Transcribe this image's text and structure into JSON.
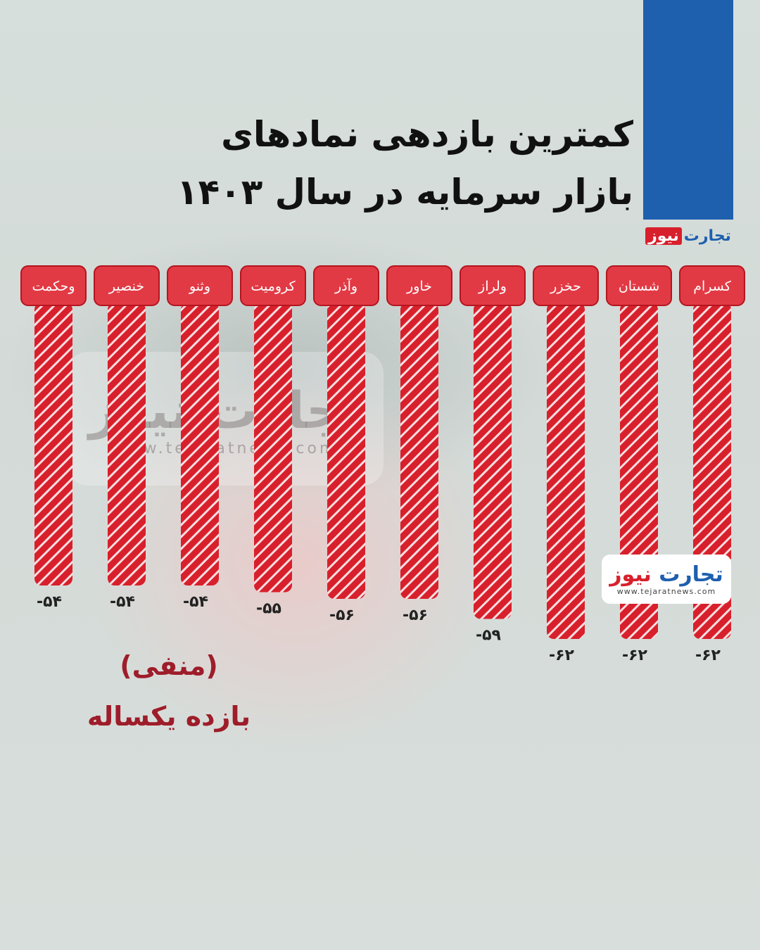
{
  "title_lines": [
    "کمترین بازدهی نمادهای",
    "بازار سرمایه در سال ۱۴۰۳"
  ],
  "brand": {
    "name_part1": "تجارت",
    "name_part2": "نیوز",
    "url": "www.tejaratnews.com"
  },
  "caption": {
    "line1": "(منفی)",
    "line2": "بازده یکساله"
  },
  "colors": {
    "bar": "#d8202c",
    "bar_stripe": "#ffffff",
    "label_fill": "#e23a45",
    "label_text": "#ffffff",
    "value_text": "#222222",
    "accent_blue": "#1e5fae"
  },
  "chart_data": {
    "type": "bar",
    "orientation": "vertical-downward",
    "categories": [
      "کسرام",
      "شستان",
      "حخزر",
      "ولراز",
      "خاور",
      "وآذر",
      "کرومیت",
      "وثنو",
      "خنصیر",
      "وحکمت"
    ],
    "values": [
      -62,
      -62,
      -62,
      -59,
      -56,
      -56,
      -55,
      -54,
      -54,
      -54
    ],
    "value_labels": [
      "-۶۲",
      "-۶۲",
      "-۶۲",
      "-۵۹",
      "-۵۶",
      "-۵۶",
      "-۵۵",
      "-۵۴",
      "-۵۴",
      "-۵۴"
    ],
    "category_order": "right-to-left"
  }
}
